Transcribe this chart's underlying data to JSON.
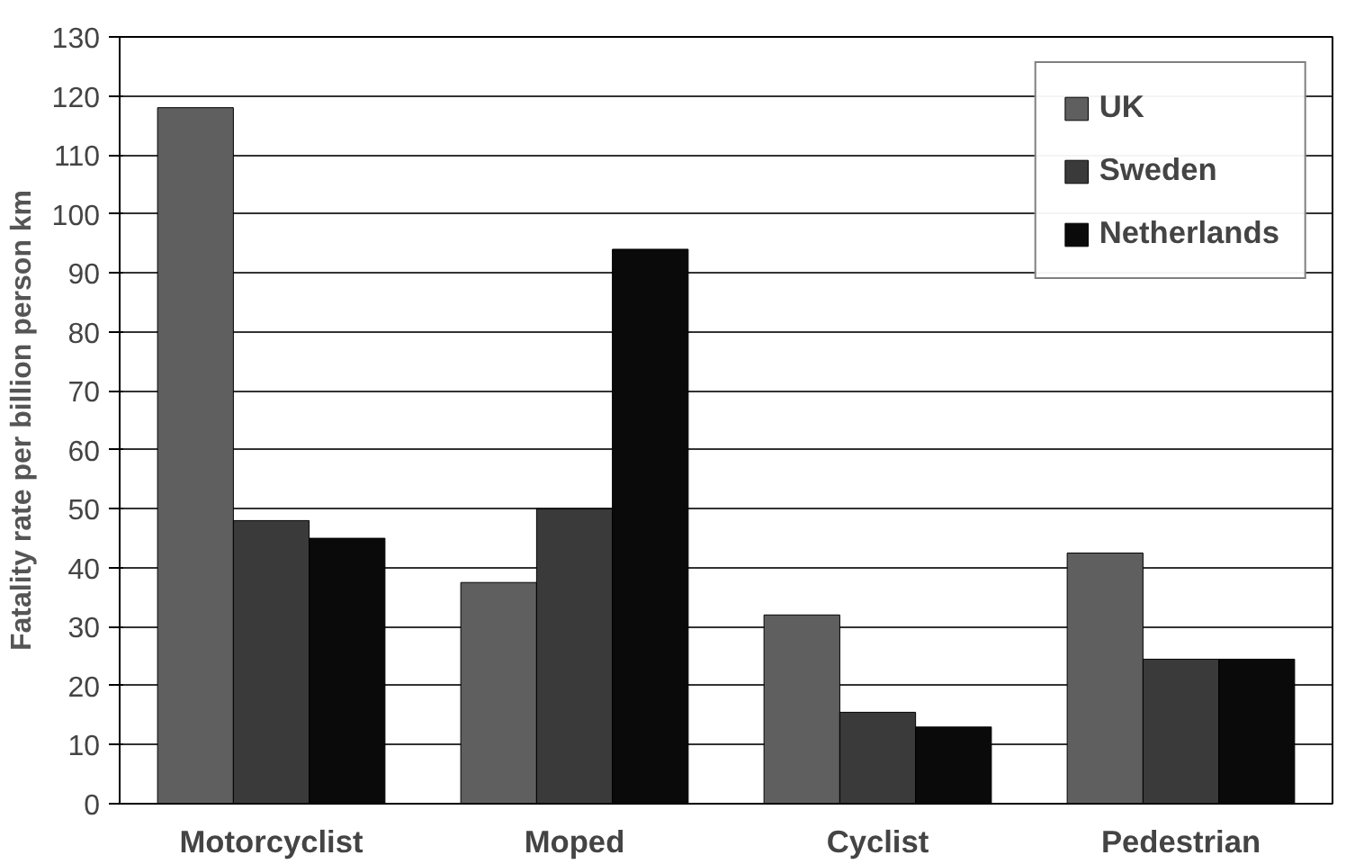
{
  "chart_data": {
    "type": "bar",
    "ylabel": "Fatality rate per billion person km",
    "categories": [
      "Motorcyclist",
      "Moped",
      "Cyclist",
      "Pedestrian"
    ],
    "series": [
      {
        "name": "UK",
        "color": "#5f5f5f",
        "values": [
          118,
          37.5,
          32,
          42.5
        ]
      },
      {
        "name": "Sweden",
        "color": "#3a3a3a",
        "values": [
          48,
          50,
          15.5,
          24.5
        ]
      },
      {
        "name": "Netherlands",
        "color": "#0a0a0a",
        "values": [
          45,
          94,
          13,
          24.5
        ]
      }
    ],
    "ylim": [
      0,
      130
    ],
    "yticks": [
      0,
      10,
      20,
      30,
      40,
      50,
      60,
      70,
      80,
      90,
      100,
      110,
      120,
      130
    ],
    "grid": "y",
    "legend": "top right"
  }
}
